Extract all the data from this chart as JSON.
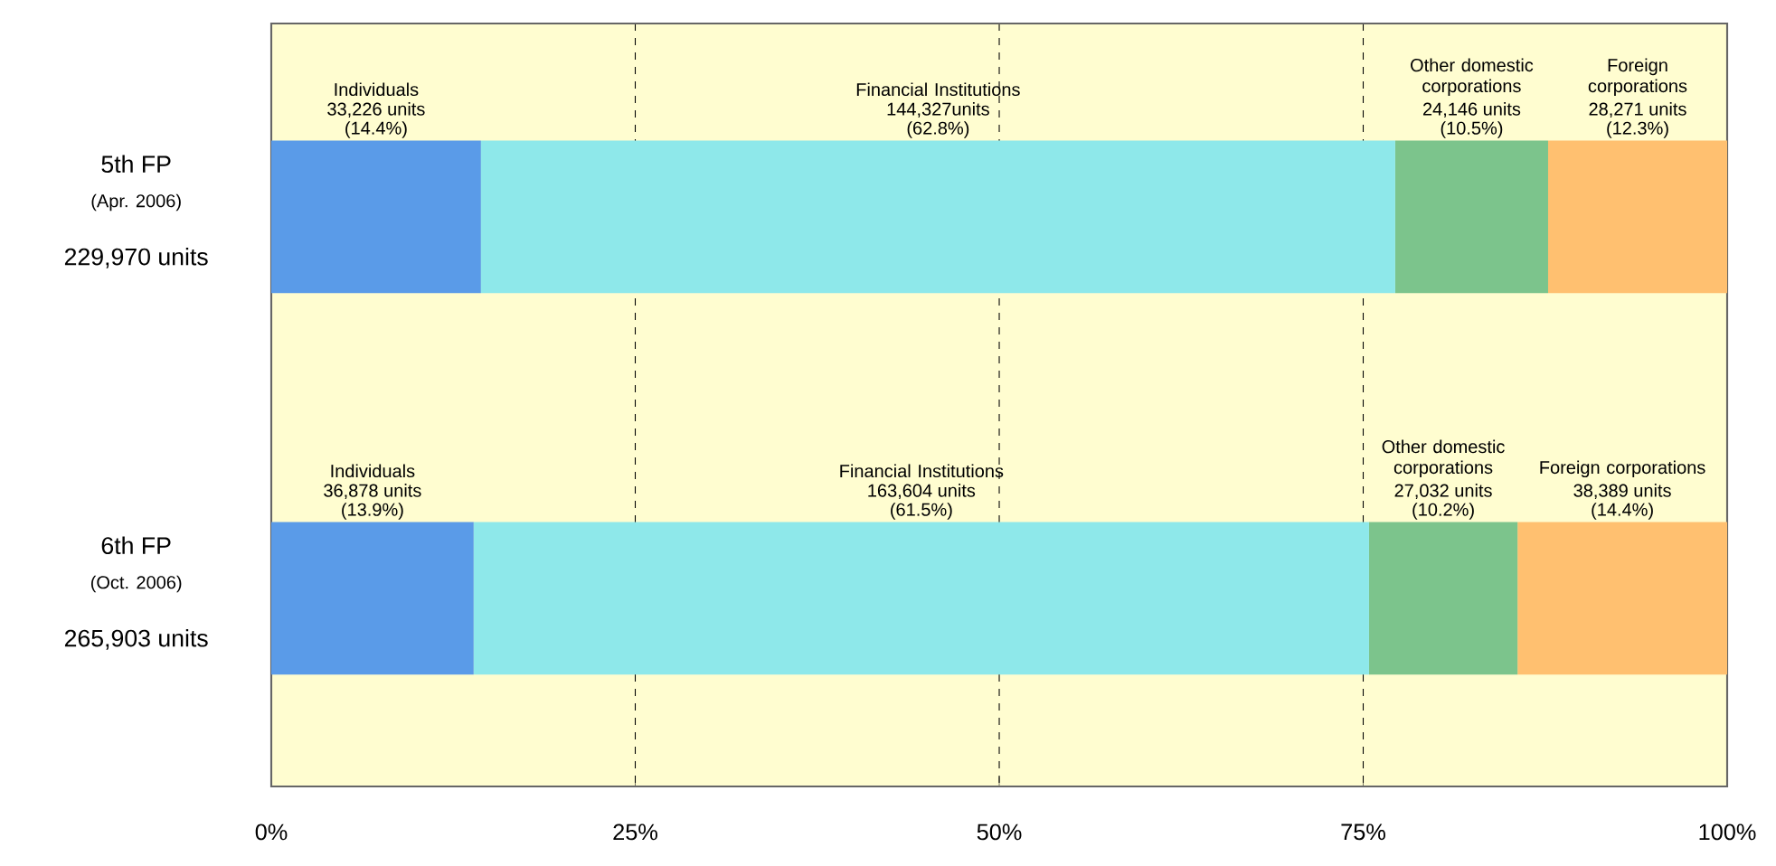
{
  "chart_data": {
    "type": "bar",
    "orientation": "horizontal",
    "stacked": true,
    "categories": [
      "5th FP",
      "6th FP"
    ],
    "series": [
      {
        "name": "Individuals",
        "color": "#5a9be8",
        "values": [
          14.4,
          13.9
        ],
        "value_labels": [
          "(14.4%)",
          "(13.9%)"
        ]
      },
      {
        "name": "Financial Institutions",
        "color": "#8ee8ea",
        "values": [
          62.8,
          61.5
        ],
        "value_labels": [
          "(62.8%)",
          "(61.5%)"
        ]
      },
      {
        "name": "Other domestic corporations",
        "color": "#7cc48c",
        "values": [
          10.5,
          10.2
        ],
        "value_labels": [
          "(10.5%)",
          "(10.2%)"
        ]
      },
      {
        "name": "Foreign corporations",
        "color": "#ffc070",
        "values": [
          12.3,
          14.4
        ],
        "value_labels": [
          "(12.3%)",
          "(14.4%)"
        ]
      }
    ],
    "annotations": [
      "33,226 units",
      "144,327units",
      "24,146 units",
      "28,271 units",
      "36,878 units",
      "163,604 units",
      "27,032 units",
      "38,389 units",
      "(Apr. 2006)",
      "229,970 units",
      "(Oct. 2006)",
      "265,903 units"
    ],
    "xlim": [
      0,
      100
    ],
    "xticks": [
      {
        "value": 0,
        "label": "0%"
      },
      {
        "value": 25,
        "label": "25%"
      },
      {
        "value": 50,
        "label": "50%"
      },
      {
        "value": 75,
        "label": "75%"
      },
      {
        "value": 100,
        "label": "100%"
      }
    ],
    "grid": "x",
    "legend": false
  }
}
